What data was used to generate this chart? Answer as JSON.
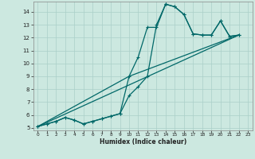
{
  "title": "",
  "xlabel": "Humidex (Indice chaleur)",
  "bg_color": "#cce8e0",
  "line_color": "#006868",
  "grid_color": "#aacfc8",
  "xlim": [
    -0.5,
    23.5
  ],
  "ylim": [
    4.8,
    14.8
  ],
  "xticks": [
    0,
    1,
    2,
    3,
    4,
    5,
    6,
    7,
    8,
    9,
    10,
    11,
    12,
    13,
    14,
    15,
    16,
    17,
    18,
    19,
    20,
    21,
    22,
    23
  ],
  "yticks": [
    5,
    6,
    7,
    8,
    9,
    10,
    11,
    12,
    13,
    14
  ],
  "lines": [
    {
      "x": [
        0,
        1,
        2,
        3,
        4,
        5,
        6,
        7,
        8,
        9,
        10,
        11,
        12,
        13,
        14,
        15,
        16,
        17,
        18,
        19,
        20,
        21,
        22
      ],
      "y": [
        5.1,
        5.3,
        5.5,
        5.8,
        5.6,
        5.3,
        5.5,
        5.7,
        5.9,
        6.1,
        7.5,
        8.2,
        9.0,
        13.0,
        14.6,
        14.4,
        13.8,
        12.3,
        12.2,
        12.2,
        13.3,
        12.1,
        12.2
      ],
      "has_markers": true
    },
    {
      "x": [
        0,
        1,
        2,
        3,
        4,
        5,
        6,
        7,
        8,
        9,
        10,
        11,
        12,
        13,
        14,
        15,
        16,
        17,
        18,
        19,
        20,
        21,
        22
      ],
      "y": [
        5.1,
        5.3,
        5.5,
        5.8,
        5.6,
        5.3,
        5.5,
        5.7,
        5.9,
        6.1,
        9.0,
        10.5,
        12.8,
        12.8,
        14.6,
        14.4,
        13.8,
        12.3,
        12.2,
        12.2,
        13.3,
        12.1,
        12.2
      ],
      "has_markers": true
    },
    {
      "x": [
        0,
        10,
        22
      ],
      "y": [
        5.1,
        9.0,
        12.2
      ],
      "has_markers": false
    },
    {
      "x": [
        0,
        22
      ],
      "y": [
        5.1,
        12.2
      ],
      "has_markers": false
    }
  ]
}
